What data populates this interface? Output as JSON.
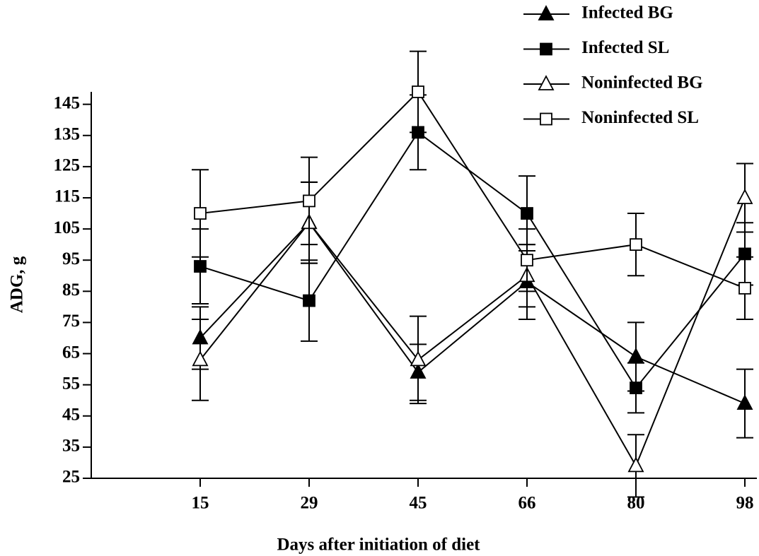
{
  "chart_data": {
    "type": "line",
    "xlabel": "Days after initiation of diet",
    "ylabel": "ADG, g",
    "categories": [
      "15",
      "29",
      "45",
      "66",
      "80",
      "98"
    ],
    "ylim": [
      25,
      149
    ],
    "yticks": [
      25,
      35,
      45,
      55,
      65,
      75,
      85,
      95,
      105,
      115,
      125,
      135,
      145
    ],
    "legend": "top-right",
    "series": [
      {
        "name": "Infected BG",
        "color": "#000000",
        "marker": "triangle",
        "filled": true,
        "values": [
          70,
          107,
          59,
          88,
          64,
          49
        ],
        "errors": [
          10,
          13,
          9,
          12,
          11,
          11
        ]
      },
      {
        "name": "Infected SL",
        "color": "#000000",
        "marker": "square",
        "filled": true,
        "values": [
          93,
          82,
          136,
          110,
          54,
          97
        ],
        "errors": [
          12,
          13,
          12,
          12,
          8,
          10
        ]
      },
      {
        "name": "Noninfected BG",
        "color": "#000000",
        "marker": "triangle",
        "filled": false,
        "values": [
          63,
          107,
          63,
          90,
          29,
          115
        ],
        "errors": [
          13,
          13,
          14,
          10,
          10,
          11
        ]
      },
      {
        "name": "Noninfected SL",
        "color": "#000000",
        "marker": "square",
        "filled": false,
        "values": [
          110,
          114,
          149,
          95,
          100,
          86
        ],
        "errors": [
          14,
          14,
          13,
          10,
          10,
          10
        ]
      }
    ]
  }
}
